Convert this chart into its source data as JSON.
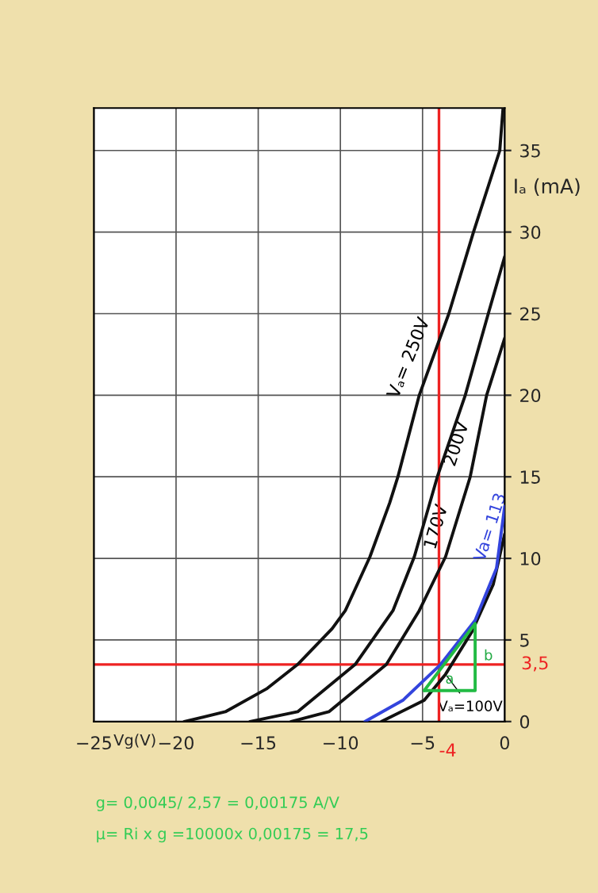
{
  "chart_data": {
    "type": "line",
    "xlabel": "Vg(V)",
    "ylabel": "Iₐ (mA)",
    "xlim": [
      -25,
      0
    ],
    "ylim": [
      0,
      37.6
    ],
    "xticks": [
      {
        "value": -25,
        "label": "−25"
      },
      {
        "value": -20,
        "label": "−20"
      },
      {
        "value": -15,
        "label": "−15"
      },
      {
        "value": -10,
        "label": "−10"
      },
      {
        "value": -5,
        "label": "−5"
      },
      0
    ],
    "yticks": [
      0,
      5,
      10,
      15,
      20,
      25,
      30,
      35
    ],
    "grid": true,
    "line_style": "solid",
    "marker": "none",
    "series": [
      {
        "color": "#111111",
        "x": [
          -19.5,
          -17,
          -14.5,
          -12.6,
          -10.5,
          -9.7,
          -8.2,
          -7.0,
          -6.5,
          -5.2,
          -3.4,
          -1.9,
          -0.3,
          -0.1
        ],
        "values": [
          0,
          0.6,
          2,
          3.5,
          5.7,
          6.8,
          10.1,
          13.4,
          15,
          20,
          25,
          30,
          35,
          37.6
        ]
      },
      {
        "color": "#111111",
        "x": [
          -15.5,
          -12.6,
          -9.1,
          -6.8,
          -5.5,
          -4.1,
          -2.4,
          -1.0,
          0
        ],
        "values": [
          0,
          0.6,
          3.5,
          6.8,
          10.1,
          15,
          20,
          25,
          28.5
        ]
      },
      {
        "color": "#111111",
        "x": [
          -13,
          -10.7,
          -7.2,
          -5.2,
          -3.6,
          -2.1,
          -1.1,
          0
        ],
        "values": [
          0,
          0.6,
          3.5,
          6.8,
          10.1,
          15,
          20,
          23.5
        ]
      },
      {
        "color": "#111111",
        "x": [
          -7.5,
          -4.9,
          -3.6,
          -2.0,
          -0.7,
          0
        ],
        "values": [
          0,
          1.3,
          2.9,
          5.5,
          8.4,
          11.5
        ]
      },
      {
        "name": "Va= 113",
        "color": "#3344dd",
        "x": [
          -8.5,
          -6.2,
          -3.9,
          -1.8,
          -0.5,
          0
        ],
        "values": [
          0,
          1.3,
          3.5,
          6.2,
          9.4,
          13.2
        ]
      },
      {
        "color": "#22bb44",
        "x": [
          -4.9,
          -1.8,
          -1.8
        ],
        "values": [
          1.9,
          1.9,
          6.0
        ]
      },
      {
        "color": "#22bb44",
        "x": [
          -4.9,
          -1.8
        ],
        "values": [
          1.9,
          6.0
        ]
      }
    ],
    "ref_lines": [
      {
        "axis": "x",
        "value": -4,
        "label": "-4",
        "color": "#ee2222"
      },
      {
        "axis": "y",
        "value": 3.5,
        "label": "3,5",
        "color": "#ee2222"
      }
    ],
    "annotations": [
      {
        "text": "Vₐ= 250V",
        "x": -4.6,
        "y": 22
      },
      {
        "text": "200V",
        "x": -2.9,
        "y": 17
      },
      {
        "text": "170V",
        "x": -3.2,
        "y": 11.5
      },
      {
        "text": "Vₐ=100V",
        "x": -3.6,
        "y": 2.9
      },
      {
        "text": "a",
        "x": -3.35,
        "y": 1.9
      },
      {
        "text": "b",
        "x": -1.8,
        "y": 4.0
      },
      "g= 0,0045/ 2,57 = 0,00175 A/V",
      "µ= Ri x g =10000x 0,00175 = 17,5"
    ]
  }
}
